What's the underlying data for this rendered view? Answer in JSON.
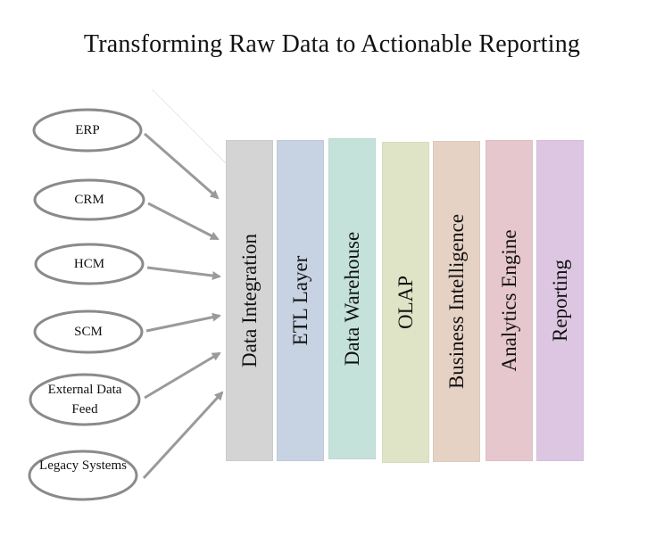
{
  "title": "Transforming Raw Data to Actionable Reporting",
  "sources": [
    {
      "label": "ERP",
      "name": "erp"
    },
    {
      "label": "CRM",
      "name": "crm"
    },
    {
      "label": "HCM",
      "name": "hcm"
    },
    {
      "label": "SCM",
      "name": "scm"
    },
    {
      "label": "External Data Feed",
      "name": "external-data-feed"
    },
    {
      "label": "Legacy Systems",
      "name": "legacy-systems"
    }
  ],
  "layers": [
    {
      "label": "Data Integration",
      "color": "#d4d4d4"
    },
    {
      "label": "ETL Layer",
      "color": "#c7d3e3"
    },
    {
      "label": "Data Warehouse",
      "color": "#c4e2da"
    },
    {
      "label": "OLAP",
      "color": "#dfe4c6"
    },
    {
      "label": "Business Intelligence",
      "color": "#e6d2c4"
    },
    {
      "label": "Analytics Engine",
      "color": "#e6c7cd"
    },
    {
      "label": "Reporting",
      "color": "#ddc6e2"
    }
  ],
  "colors": {
    "ellipse_stroke": "#8a8a8a",
    "arrow": "#9a9a9a",
    "text": "#111111"
  }
}
